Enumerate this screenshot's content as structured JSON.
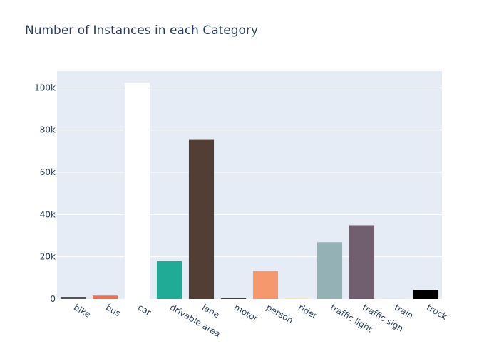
{
  "chart_data": {
    "type": "bar",
    "title": "Number of Instances in each Category",
    "xlabel": "",
    "ylabel": "",
    "categories": [
      "bike",
      "bus",
      "car",
      "drivable area",
      "lane",
      "motor",
      "person",
      "rider",
      "traffic light",
      "traffic sign",
      "train",
      "truck"
    ],
    "values": [
      1007,
      1597,
      102506,
      17941,
      75665,
      452,
      13262,
      649,
      26885,
      34908,
      15,
      4245
    ],
    "colors": [
      "#555555",
      "#f26e50",
      "#ffffff",
      "#1fab96",
      "#533e36",
      "#444444",
      "#f6986d",
      "#f5efc8",
      "#94b1b6",
      "#715f70",
      "#d8d8d8",
      "#000000"
    ],
    "ylim": [
      0,
      107894
    ],
    "yticks": [
      0,
      20000,
      40000,
      60000,
      80000,
      100000
    ],
    "ytick_labels": [
      "0",
      "20k",
      "40k",
      "60k",
      "80k",
      "100k"
    ],
    "grid": true,
    "plot_background": "#e5ecf6",
    "text_color": "#2a3f5f"
  }
}
